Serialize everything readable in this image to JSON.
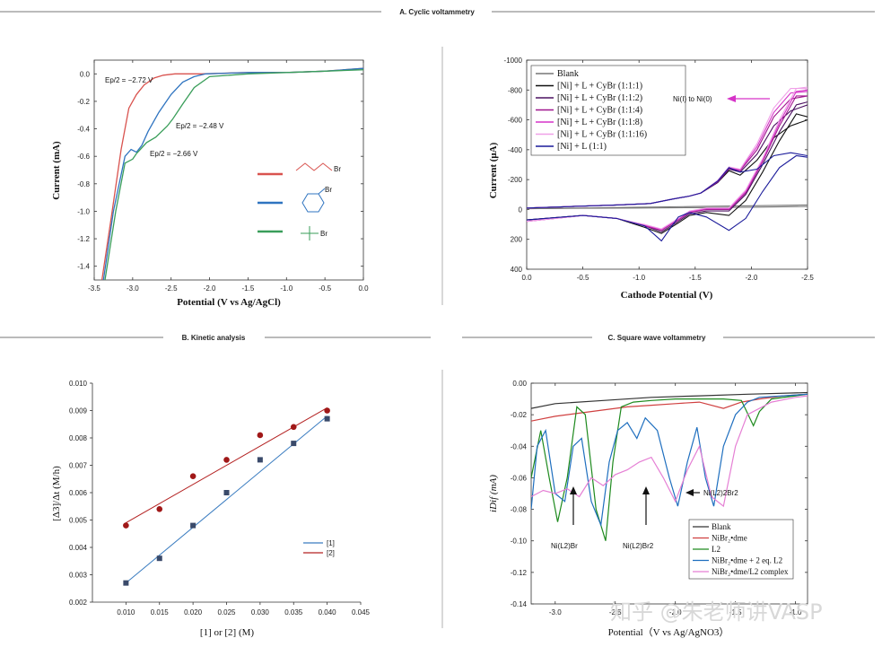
{
  "sections": {
    "a_title": "A.  Cyclic voltammetry",
    "b_title": "B. Kinetic analysis",
    "c_title": "C.  Square wave voltammetry"
  },
  "watermark": "知乎 @朱老师讲VASP",
  "chart_data": [
    {
      "id": "cv_left",
      "type": "line",
      "xlabel": "Potential (V vs Ag/AgCl)",
      "ylabel": "Current (mA)",
      "xlim": [
        -3.5,
        0.0
      ],
      "ylim": [
        -1.5,
        0.1
      ],
      "xticks": [
        "-3.5",
        "-3.0",
        "-2.5",
        "-2.0",
        "-1.5",
        "-1.0",
        "-0.5",
        "0.0"
      ],
      "yticks": [
        "0.0",
        "-0.2",
        "-0.4",
        "-0.6",
        "-0.8",
        "-1.0",
        "-1.2",
        "-1.4"
      ],
      "annotations": [
        "Ep/2 = −2.72 V",
        "Ep/2 = −2.48 V",
        "Ep/2 = −2.66 V"
      ],
      "legend_labels": [
        "Br",
        "Br",
        "Br"
      ],
      "colors": [
        "#d9534f",
        "#2f74c0",
        "#3a9e5a"
      ],
      "series": [
        {
          "name": "1-bromobutane",
          "color": "#d9534f",
          "x": [
            -3.4,
            -3.28,
            -3.15,
            -3.05,
            -2.95,
            -2.85,
            -2.72,
            -2.6,
            -2.45,
            -2.3,
            -2.1,
            -1.5,
            -1.0,
            -0.5,
            0.0
          ],
          "y": [
            -1.5,
            -1.05,
            -0.55,
            -0.25,
            -0.15,
            -0.08,
            -0.03,
            -0.01,
            0.0,
            0.0,
            0.0,
            0.01,
            0.01,
            0.02,
            0.04
          ]
        },
        {
          "name": "bromocyclohexane",
          "color": "#2f74c0",
          "x": [
            -3.38,
            -3.25,
            -3.1,
            -3.02,
            -2.95,
            -2.88,
            -2.8,
            -2.66,
            -2.5,
            -2.35,
            -2.2,
            -2.05,
            -1.5,
            -1.0,
            -0.5,
            0.0
          ],
          "y": [
            -1.5,
            -1.0,
            -0.6,
            -0.55,
            -0.57,
            -0.52,
            -0.42,
            -0.28,
            -0.15,
            -0.06,
            -0.02,
            0.0,
            0.01,
            0.01,
            0.02,
            0.04
          ]
        },
        {
          "name": "tert-butyl bromide",
          "color": "#3a9e5a",
          "x": [
            -3.36,
            -3.22,
            -3.1,
            -3.0,
            -2.95,
            -2.9,
            -2.82,
            -2.7,
            -2.55,
            -2.48,
            -2.35,
            -2.2,
            -2.0,
            -1.5,
            -1.0,
            -0.5,
            0.0
          ],
          "y": [
            -1.5,
            -1.0,
            -0.65,
            -0.62,
            -0.58,
            -0.55,
            -0.5,
            -0.46,
            -0.38,
            -0.33,
            -0.22,
            -0.1,
            -0.02,
            0.0,
            0.01,
            0.02,
            0.03
          ]
        }
      ]
    },
    {
      "id": "cv_right",
      "type": "line",
      "xlabel": "Cathode Potential (V)",
      "ylabel": "Current (μA)",
      "xlim": [
        0.0,
        -2.5
      ],
      "ylim": [
        400,
        -1000
      ],
      "xticks": [
        "0.0",
        "-0.5",
        "-1.0",
        "-1.5",
        "-2.0",
        "-2.5"
      ],
      "yticks": [
        "-1000",
        "-800",
        "-600",
        "-400",
        "-200",
        "0",
        "200",
        "400"
      ],
      "annotation": "Ni(I) to Ni(0)",
      "legend": [
        "Blank",
        "[Ni] + L + CyBr (1:1:1)",
        "[Ni] + L + CyBr (1:1:2)",
        "[Ni] + L + CyBr (1:1:4)",
        "[Ni] + L + CyBr (1:1:8)",
        "[Ni] + L + CyBr (1:1:16)",
        "[Ni] + L (1:1)"
      ],
      "colors": [
        "#777777",
        "#111111",
        "#4b1060",
        "#a0168e",
        "#d633c8",
        "#f0a0e8",
        "#1a1a9a"
      ],
      "series": [
        {
          "name": "Blank",
          "color": "#777777",
          "x": [
            0.0,
            -0.5,
            -1.0,
            -1.5,
            -2.0,
            -2.5
          ],
          "y": [
            -5,
            -8,
            -10,
            -12,
            -15,
            -20
          ],
          "x2": [
            -2.5,
            -2.0,
            -1.5,
            -1.0,
            -0.5,
            0.0
          ],
          "y2": [
            -30,
            -25,
            -20,
            -15,
            -10,
            -5
          ]
        },
        {
          "name": "[Ni] + L + CyBr (1:1:1)",
          "color": "#111111",
          "x": [
            0.0,
            -0.4,
            -0.8,
            -1.1,
            -1.3,
            -1.45,
            -1.55,
            -1.7,
            -1.8,
            -1.9,
            -2.05,
            -2.2,
            -2.35,
            -2.5
          ],
          "y": [
            -10,
            -20,
            -30,
            -40,
            -70,
            -90,
            -110,
            -180,
            -260,
            -230,
            -330,
            -480,
            -560,
            -600
          ],
          "x2": [
            -2.5,
            -2.4,
            -2.25,
            -2.1,
            -1.95,
            -1.8,
            -1.6,
            -1.45,
            -1.35,
            -1.2,
            -1.05,
            -0.8,
            -0.5,
            0.0
          ],
          "y2": [
            -620,
            -640,
            -460,
            -250,
            -60,
            40,
            20,
            40,
            90,
            160,
            120,
            60,
            40,
            70
          ]
        },
        {
          "name": "[Ni] + L + CyBr (1:1:2)",
          "color": "#4b1060",
          "x": [
            0.0,
            -0.4,
            -0.8,
            -1.1,
            -1.3,
            -1.45,
            -1.55,
            -1.7,
            -1.8,
            -1.9,
            -2.05,
            -2.2,
            -2.35,
            -2.5
          ],
          "y": [
            -10,
            -20,
            -30,
            -40,
            -70,
            -90,
            -110,
            -180,
            -270,
            -250,
            -370,
            -560,
            -660,
            -700
          ],
          "x2": [
            -2.5,
            -2.4,
            -2.25,
            -2.1,
            -1.95,
            -1.8,
            -1.6,
            -1.45,
            -1.35,
            -1.2,
            -1.05,
            -0.8,
            -0.5,
            0.0
          ],
          "y2": [
            -720,
            -700,
            -520,
            -300,
            -100,
            10,
            10,
            30,
            80,
            150,
            110,
            60,
            40,
            70
          ]
        },
        {
          "name": "[Ni] + L + CyBr (1:1:4)",
          "color": "#a0168e",
          "x": [
            0.0,
            -0.4,
            -0.8,
            -1.1,
            -1.3,
            -1.45,
            -1.55,
            -1.7,
            -1.8,
            -1.9,
            -2.05,
            -2.2,
            -2.35,
            -2.5
          ],
          "y": [
            -10,
            -20,
            -30,
            -40,
            -70,
            -90,
            -110,
            -185,
            -275,
            -260,
            -400,
            -620,
            -740,
            -760
          ],
          "x2": [
            -2.5,
            -2.4,
            -2.25,
            -2.1,
            -1.95,
            -1.8,
            -1.6,
            -1.45,
            -1.35,
            -1.2,
            -1.05,
            -0.8,
            -0.5,
            0.0
          ],
          "y2": [
            -760,
            -760,
            -560,
            -320,
            -110,
            0,
            0,
            20,
            70,
            140,
            110,
            60,
            40,
            80
          ]
        },
        {
          "name": "[Ni] + L + CyBr (1:1:8)",
          "color": "#d633c8",
          "x": [
            0.0,
            -0.4,
            -0.8,
            -1.1,
            -1.3,
            -1.45,
            -1.55,
            -1.7,
            -1.8,
            -1.9,
            -2.05,
            -2.2,
            -2.35,
            -2.5
          ],
          "y": [
            -10,
            -20,
            -30,
            -40,
            -70,
            -90,
            -110,
            -190,
            -280,
            -265,
            -420,
            -650,
            -780,
            -790
          ],
          "x2": [
            -2.5,
            -2.4,
            -2.25,
            -2.1,
            -1.95,
            -1.8,
            -1.6,
            -1.45,
            -1.35,
            -1.2,
            -1.05,
            -0.8,
            -0.5,
            0.0
          ],
          "y2": [
            -800,
            -790,
            -580,
            -330,
            -120,
            -5,
            -5,
            15,
            65,
            135,
            105,
            60,
            40,
            80
          ]
        },
        {
          "name": "[Ni] + L + CyBr (1:1:16)",
          "color": "#f0a0e8",
          "x": [
            0.0,
            -0.4,
            -0.8,
            -1.1,
            -1.3,
            -1.45,
            -1.55,
            -1.7,
            -1.8,
            -1.9,
            -2.05,
            -2.2,
            -2.35,
            -2.5
          ],
          "y": [
            -10,
            -20,
            -30,
            -40,
            -70,
            -90,
            -110,
            -195,
            -285,
            -270,
            -440,
            -680,
            -810,
            -810
          ],
          "x2": [
            -2.5,
            -2.4,
            -2.25,
            -2.1,
            -1.95,
            -1.8,
            -1.6,
            -1.45,
            -1.35,
            -1.2,
            -1.05,
            -0.8,
            -0.5,
            0.0
          ],
          "y2": [
            -820,
            -810,
            -600,
            -340,
            -130,
            -10,
            -10,
            10,
            60,
            130,
            100,
            60,
            40,
            80
          ]
        },
        {
          "name": "[Ni] + L (1:1)",
          "color": "#1a1a9a",
          "x": [
            0.0,
            -0.4,
            -0.8,
            -1.1,
            -1.3,
            -1.45,
            -1.55,
            -1.7,
            -1.8,
            -1.9,
            -2.05,
            -2.2,
            -2.35,
            -2.5
          ],
          "y": [
            -10,
            -20,
            -30,
            -40,
            -70,
            -90,
            -110,
            -190,
            -280,
            -250,
            -270,
            -360,
            -380,
            -360
          ],
          "x2": [
            -2.5,
            -2.4,
            -2.25,
            -2.1,
            -1.95,
            -1.8,
            -1.6,
            -1.45,
            -1.35,
            -1.2,
            -1.05,
            -0.8,
            -0.5,
            0.0
          ],
          "y2": [
            -350,
            -360,
            -280,
            -120,
            60,
            140,
            50,
            20,
            50,
            210,
            110,
            60,
            40,
            70
          ]
        }
      ]
    },
    {
      "id": "kinetic",
      "type": "scatter",
      "xlabel": "[1] or [2] (M)",
      "ylabel": "[Δ3]/Δt (M/h)",
      "xlim": [
        0.005,
        0.045
      ],
      "ylim": [
        0.002,
        0.01
      ],
      "xticks": [
        "0.010",
        "0.015",
        "0.020",
        "0.025",
        "0.030",
        "0.035",
        "0.040",
        "0.045"
      ],
      "yticks": [
        "0.010",
        "0.009",
        "0.008",
        "0.007",
        "0.006",
        "0.005",
        "0.004",
        "0.003",
        "0.002"
      ],
      "series": [
        {
          "name": "[1]",
          "color": "#3a7cc0",
          "marker": "square",
          "x": [
            0.01,
            0.015,
            0.02,
            0.025,
            0.03,
            0.035,
            0.04
          ],
          "y": [
            0.0027,
            0.0036,
            0.0048,
            0.006,
            0.0072,
            0.0078,
            0.0087
          ],
          "fit": [
            [
              0.01,
              0.0027
            ],
            [
              0.04,
              0.0088
            ]
          ]
        },
        {
          "name": "[2]",
          "color": "#b32020",
          "marker": "circle",
          "x": [
            0.01,
            0.015,
            0.02,
            0.025,
            0.03,
            0.035,
            0.04
          ],
          "y": [
            0.0048,
            0.0054,
            0.0066,
            0.0072,
            0.0081,
            0.0084,
            0.009
          ],
          "fit": [
            [
              0.01,
              0.0049
            ],
            [
              0.04,
              0.0091
            ]
          ]
        }
      ]
    },
    {
      "id": "swv",
      "type": "line",
      "xlabel": "Potential（V vs Ag/AgNO3）",
      "ylabel": "iDif (mA)",
      "xlim": [
        -3.2,
        -0.9
      ],
      "ylim": [
        -0.14,
        0.0
      ],
      "xticks": [
        "-3.0",
        "-2.5",
        "-2.0",
        "-1.5",
        "-1.0"
      ],
      "yticks": [
        "0.00",
        "-0.02",
        "-0.04",
        "-0.06",
        "-0.08",
        "-0.10",
        "-0.12",
        "-0.14"
      ],
      "annotations": [
        "Ni(L2)Br",
        "Ni(L2)Br2",
        "Ni(L2)2Br2"
      ],
      "legend": [
        "Blank",
        "NiBr₂•dme",
        "L2",
        "NiBr₂•dme + 2 eq. L2",
        "NiBr₂•dme/L2 complex"
      ],
      "colors": [
        "#333333",
        "#d04040",
        "#1e8a1e",
        "#1f6fbf",
        "#e57fd4"
      ],
      "series": [
        {
          "name": "Blank",
          "color": "#333333",
          "x": [
            -3.2,
            -3.0,
            -2.6,
            -2.2,
            -1.8,
            -1.4,
            -0.9
          ],
          "y": [
            -0.016,
            -0.013,
            -0.011,
            -0.009,
            -0.008,
            -0.007,
            -0.006
          ]
        },
        {
          "name": "NiBr₂•dme",
          "color": "#d04040",
          "x": [
            -3.2,
            -3.0,
            -2.8,
            -2.6,
            -2.4,
            -2.2,
            -2.0,
            -1.8,
            -1.6,
            -1.45,
            -1.3,
            -1.1,
            -0.9
          ],
          "y": [
            -0.024,
            -0.021,
            -0.019,
            -0.017,
            -0.015,
            -0.014,
            -0.013,
            -0.012,
            -0.016,
            -0.012,
            -0.01,
            -0.008,
            -0.007
          ]
        },
        {
          "name": "L2",
          "color": "#1e8a1e",
          "x": [
            -3.2,
            -3.12,
            -3.05,
            -2.98,
            -2.9,
            -2.82,
            -2.75,
            -2.66,
            -2.58,
            -2.52,
            -2.45,
            -2.35,
            -2.2,
            -2.0,
            -1.8,
            -1.6,
            -1.45,
            -1.35,
            -1.3,
            -1.2,
            -1.0,
            -0.9
          ],
          "y": [
            -0.06,
            -0.03,
            -0.06,
            -0.088,
            -0.06,
            -0.015,
            -0.02,
            -0.08,
            -0.1,
            -0.05,
            -0.015,
            -0.012,
            -0.011,
            -0.01,
            -0.01,
            -0.01,
            -0.011,
            -0.027,
            -0.018,
            -0.01,
            -0.008,
            -0.007
          ]
        },
        {
          "name": "NiBr₂•dme + 2 eq. L2",
          "color": "#1f6fbf",
          "x": [
            -3.2,
            -3.15,
            -3.08,
            -3.0,
            -2.92,
            -2.85,
            -2.78,
            -2.7,
            -2.62,
            -2.55,
            -2.48,
            -2.4,
            -2.32,
            -2.25,
            -2.15,
            -2.05,
            -1.98,
            -1.9,
            -1.82,
            -1.75,
            -1.68,
            -1.6,
            -1.5,
            -1.4,
            -1.3,
            -1.1,
            -0.9
          ],
          "y": [
            -0.08,
            -0.04,
            -0.03,
            -0.07,
            -0.075,
            -0.04,
            -0.035,
            -0.075,
            -0.09,
            -0.05,
            -0.03,
            -0.025,
            -0.035,
            -0.022,
            -0.03,
            -0.06,
            -0.078,
            -0.05,
            -0.028,
            -0.06,
            -0.078,
            -0.04,
            -0.02,
            -0.012,
            -0.009,
            -0.008,
            -0.007
          ]
        },
        {
          "name": "NiBr₂•dme/L2 complex",
          "color": "#e57fd4",
          "x": [
            -3.2,
            -3.1,
            -3.0,
            -2.9,
            -2.8,
            -2.7,
            -2.6,
            -2.5,
            -2.4,
            -2.3,
            -2.2,
            -2.1,
            -2.0,
            -1.9,
            -1.8,
            -1.7,
            -1.6,
            -1.5,
            -1.4,
            -1.2,
            -1.0,
            -0.9
          ],
          "y": [
            -0.072,
            -0.068,
            -0.07,
            -0.067,
            -0.072,
            -0.06,
            -0.065,
            -0.058,
            -0.055,
            -0.05,
            -0.047,
            -0.06,
            -0.075,
            -0.055,
            -0.04,
            -0.072,
            -0.078,
            -0.04,
            -0.02,
            -0.012,
            -0.009,
            -0.008
          ]
        }
      ]
    }
  ]
}
